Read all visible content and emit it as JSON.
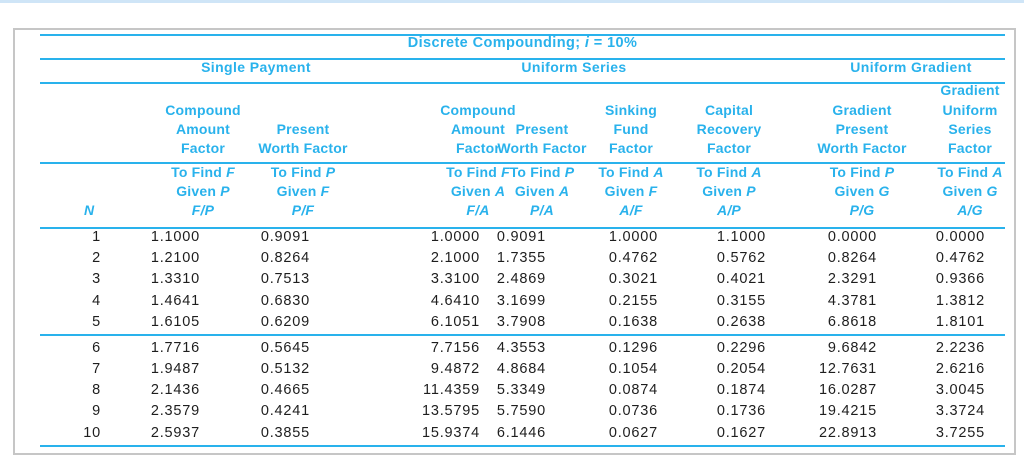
{
  "colors": {
    "accent": "#29b2ec",
    "number_text": "#1e1e1e",
    "frame_border": "#c6c6c6",
    "top_bar": "#cfe5f7"
  },
  "title": {
    "prefix": "Discrete Compounding; ",
    "var": "i",
    "suffix": " = 10%"
  },
  "table": {
    "groups": [
      {
        "label": "Single Payment"
      },
      {
        "label": "Uniform Series"
      },
      {
        "label": "Uniform Gradient"
      }
    ],
    "n_column": {
      "label": "N"
    },
    "columns": [
      {
        "name": "Compound\nAmount\nFactor",
        "find_label": "To Find",
        "find_var": "F",
        "given_label": "Given",
        "given_var": "P",
        "notation": "F/P"
      },
      {
        "name": "Present\nWorth Factor",
        "find_label": "To Find",
        "find_var": "P",
        "given_label": "Given",
        "given_var": "F",
        "notation": "P/F"
      },
      {
        "name": "Compound\nAmount\nFactor",
        "find_label": "To Find",
        "find_var": "F",
        "given_label": "Given",
        "given_var": "A",
        "notation": "F/A"
      },
      {
        "name": "Present\nWorth Factor",
        "find_label": "To Find",
        "find_var": "P",
        "given_label": "Given",
        "given_var": "A",
        "notation": "P/A"
      },
      {
        "name": "Sinking\nFund\nFactor",
        "find_label": "To Find",
        "find_var": "A",
        "given_label": "Given",
        "given_var": "F",
        "notation": "A/F"
      },
      {
        "name": "Capital\nRecovery\nFactor",
        "find_label": "To Find",
        "find_var": "A",
        "given_label": "Given",
        "given_var": "P",
        "notation": "A/P"
      },
      {
        "name": "Gradient\nPresent\nWorth Factor",
        "find_label": "To Find",
        "find_var": "P",
        "given_label": "Given",
        "given_var": "G",
        "notation": "P/G"
      },
      {
        "name": "Gradient\nUniform\nSeries\nFactor",
        "find_label": "To Find",
        "find_var": "A",
        "given_label": "Given",
        "given_var": "G",
        "notation": "A/G"
      }
    ],
    "rows": [
      {
        "n": "1",
        "values": [
          "1.1000",
          "0.9091",
          "1.0000",
          "0.9091",
          "1.0000",
          "1.1000",
          "0.0000",
          "0.0000"
        ]
      },
      {
        "n": "2",
        "values": [
          "1.2100",
          "0.8264",
          "2.1000",
          "1.7355",
          "0.4762",
          "0.5762",
          "0.8264",
          "0.4762"
        ]
      },
      {
        "n": "3",
        "values": [
          "1.3310",
          "0.7513",
          "3.3100",
          "2.4869",
          "0.3021",
          "0.4021",
          "2.3291",
          "0.9366"
        ]
      },
      {
        "n": "4",
        "values": [
          "1.4641",
          "0.6830",
          "4.6410",
          "3.1699",
          "0.2155",
          "0.3155",
          "4.3781",
          "1.3812"
        ]
      },
      {
        "n": "5",
        "values": [
          "1.6105",
          "0.6209",
          "6.1051",
          "3.7908",
          "0.1638",
          "0.2638",
          "6.8618",
          "1.8101"
        ]
      },
      {
        "n": "6",
        "values": [
          "1.7716",
          "0.5645",
          "7.7156",
          "4.3553",
          "0.1296",
          "0.2296",
          "9.6842",
          "2.2236"
        ]
      },
      {
        "n": "7",
        "values": [
          "1.9487",
          "0.5132",
          "9.4872",
          "4.8684",
          "0.1054",
          "0.2054",
          "12.7631",
          "2.6216"
        ]
      },
      {
        "n": "8",
        "values": [
          "2.1436",
          "0.4665",
          "11.4359",
          "5.3349",
          "0.0874",
          "0.1874",
          "16.0287",
          "3.0045"
        ]
      },
      {
        "n": "9",
        "values": [
          "2.3579",
          "0.4241",
          "13.5795",
          "5.7590",
          "0.0736",
          "0.1736",
          "19.4215",
          "3.3724"
        ]
      },
      {
        "n": "10",
        "values": [
          "2.5937",
          "0.3855",
          "15.9374",
          "6.1446",
          "0.0627",
          "0.1627",
          "22.8913",
          "3.7255"
        ]
      }
    ]
  }
}
